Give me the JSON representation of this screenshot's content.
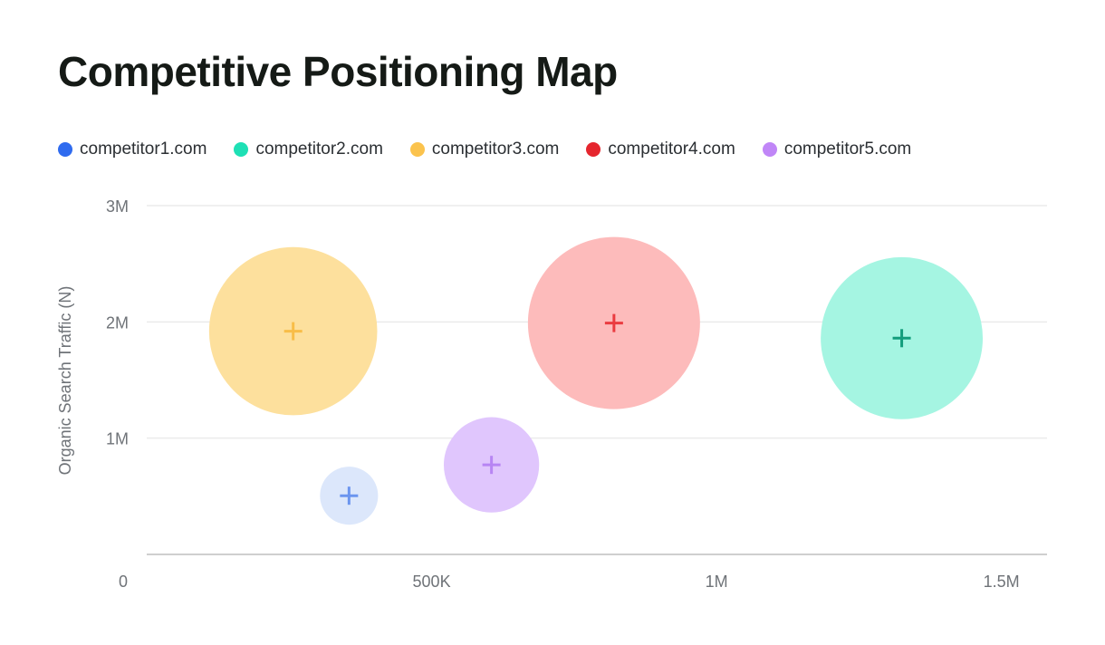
{
  "chart_data": {
    "type": "scatter",
    "subtype": "bubble",
    "title": "Competitive Positioning Map",
    "xlabel": "",
    "ylabel": "Organic Search Traffic (N)",
    "xlim": [
      0,
      1580000
    ],
    "ylim": [
      0,
      3000000
    ],
    "x_ticks": [
      {
        "value": 0,
        "label": "0"
      },
      {
        "value": 500000,
        "label": "500K"
      },
      {
        "value": 1000000,
        "label": "1M"
      },
      {
        "value": 1500000,
        "label": "1.5M"
      }
    ],
    "y_ticks": [
      {
        "value": 1000000,
        "label": "1M"
      },
      {
        "value": 2000000,
        "label": "2M"
      },
      {
        "value": 3000000,
        "label": "3M"
      }
    ],
    "grid": true,
    "legend_position": "top-left",
    "series": [
      {
        "name": "competitor1.com",
        "color": "#2f6bef",
        "fill": "#dce7fb",
        "marker": "#6b95ef",
        "x": 355000,
        "y": 505000,
        "size": 100
      },
      {
        "name": "competitor2.com",
        "color": "#1ee0b5",
        "fill": "#a5f5e2",
        "marker": "#129d7c",
        "x": 1325000,
        "y": 1860000,
        "size": 780
      },
      {
        "name": "competitor3.com",
        "color": "#fbc34d",
        "fill": "#fde09d",
        "marker": "#f8bd48",
        "x": 257000,
        "y": 1920000,
        "size": 840
      },
      {
        "name": "competitor4.com",
        "color": "#e5262e",
        "fill": "#fdbbbb",
        "marker": "#ea3b40",
        "x": 820000,
        "y": 1990000,
        "size": 880
      },
      {
        "name": "competitor5.com",
        "color": "#c086f7",
        "fill": "#e0c6fd",
        "marker": "#b785f3",
        "x": 605000,
        "y": 770000,
        "size": 270
      }
    ]
  }
}
